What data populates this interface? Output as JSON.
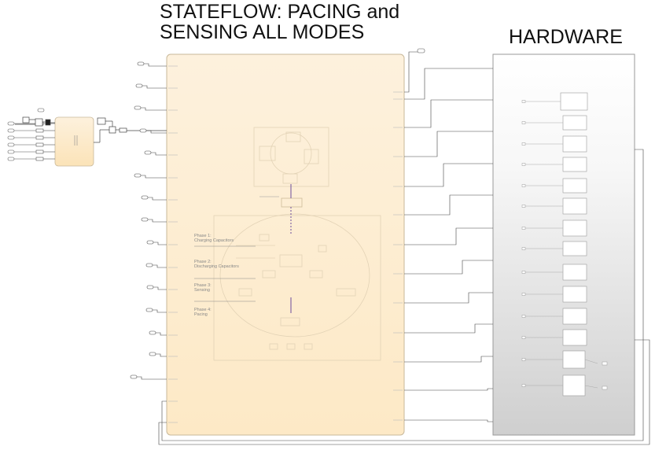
{
  "titles": {
    "stateflow_line1": "STATEFLOW: PACING and",
    "stateflow_line2": "SENSING ALL MODES",
    "hardware": "HARDWARE"
  },
  "phases": [
    {
      "line1": "Phase 1:",
      "line2": "Charging Capacitors"
    },
    {
      "line1": "Phase 2:",
      "line2": "Discharging Capacitors"
    },
    {
      "line1": "Phase 3:",
      "line2": "Sensing"
    },
    {
      "line1": "Phase 4:",
      "line2": "Pacing"
    }
  ],
  "colors": {
    "stateflow_fill_top": "#fdf1dd",
    "stateflow_fill_bottom": "#fde9c6",
    "stateflow_border": "#c8b89a",
    "hardware_fill_top": "#ffffff",
    "hardware_fill_bottom": "#d0d0d0",
    "wire": "#333333",
    "dashed_wire": "#6a4c9c"
  }
}
